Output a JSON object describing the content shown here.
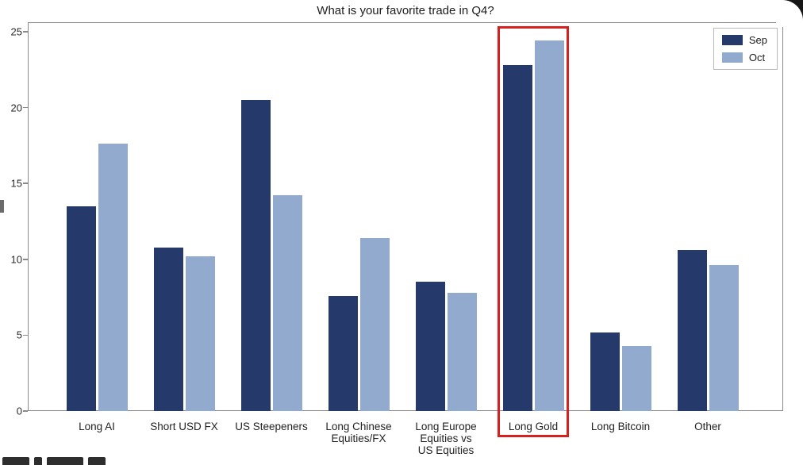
{
  "title": "What is your favorite trade in Q4?",
  "axes": {
    "y_ticks": [
      0,
      5,
      10,
      15,
      20,
      25
    ],
    "y_max": 25
  },
  "legend": {
    "position": "top-right",
    "items": [
      {
        "label": "Sep",
        "color": "#253a6a"
      },
      {
        "label": "Oct",
        "color": "#92aace"
      }
    ]
  },
  "chart_data": {
    "type": "bar",
    "title": "What is your favorite trade in Q4?",
    "categories": [
      "Long AI",
      "Short USD FX",
      "US Steepeners",
      "Long Chinese\nEquities/FX",
      "Long Europe\nEquities vs\nUS Equities",
      "Long Gold",
      "Long Bitcoin",
      "Other"
    ],
    "series": [
      {
        "name": "Sep",
        "color": "#253a6a",
        "values": [
          13.5,
          10.8,
          20.5,
          7.6,
          8.5,
          22.8,
          5.2,
          10.6
        ]
      },
      {
        "name": "Oct",
        "color": "#92aace",
        "values": [
          17.6,
          10.2,
          14.2,
          11.4,
          7.8,
          24.4,
          4.3,
          9.6
        ]
      }
    ],
    "ylim": [
      0,
      25
    ],
    "grid": false,
    "legend_position": "top-right",
    "highlight": {
      "category": "Long Gold",
      "color": "#d92020"
    }
  }
}
